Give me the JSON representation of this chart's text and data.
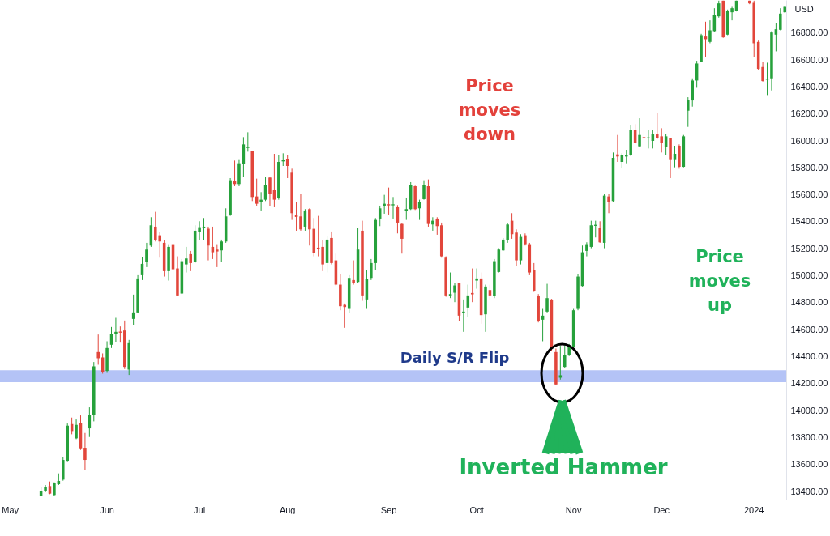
{
  "chart_data": {
    "type": "candlestick",
    "categories": [
      "May",
      null,
      null,
      null,
      null,
      null,
      null,
      null,
      null,
      null,
      null,
      null,
      null,
      null,
      null,
      null,
      null,
      null,
      null,
      null,
      null,
      null,
      "Jun",
      null,
      null,
      null,
      null,
      null,
      null,
      null,
      null,
      null,
      null,
      null,
      null,
      null,
      null,
      null,
      null,
      null,
      null,
      null,
      null,
      "Jul",
      null,
      null,
      null,
      null,
      null,
      null,
      null,
      null,
      null,
      null,
      null,
      null,
      null,
      null,
      null,
      null,
      null,
      null,
      null,
      "Aug",
      null,
      null,
      null,
      null,
      null,
      null,
      null,
      null,
      null,
      null,
      null,
      null,
      null,
      null,
      null,
      null,
      null,
      null,
      null,
      null,
      null,
      null,
      "Sep",
      null,
      null,
      null,
      null,
      null,
      null,
      null,
      null,
      null,
      null,
      null,
      null,
      null,
      null,
      null,
      null,
      null,
      null,
      null,
      "Oct",
      null,
      null,
      null,
      null,
      null,
      null,
      null,
      null,
      null,
      null,
      null,
      null,
      null,
      null,
      null,
      null,
      null,
      null,
      null,
      null,
      null,
      "Nov",
      null,
      null,
      null,
      null,
      null,
      null,
      null,
      null,
      null,
      null,
      null,
      null,
      null,
      null,
      null,
      null,
      null,
      null,
      null,
      "Dec",
      null,
      null,
      null,
      null,
      null,
      null,
      null,
      null,
      null,
      null,
      null,
      null,
      null,
      null,
      null,
      null,
      null,
      null,
      null,
      null,
      "2024",
      null,
      null,
      null,
      null,
      null,
      null,
      null
    ],
    "ohlc": [
      null,
      null,
      null,
      null,
      null,
      null,
      null,
      [
        13368,
        13434,
        13364,
        13404
      ],
      [
        13404,
        13448,
        13394,
        13434
      ],
      [
        13440,
        13474,
        13380,
        13384
      ],
      [
        13374,
        13468,
        13368,
        13460
      ],
      [
        13454,
        13534,
        13448,
        13478
      ],
      [
        13488,
        13654,
        13480,
        13634
      ],
      [
        13628,
        13904,
        13624,
        13888
      ],
      [
        13900,
        13948,
        13824,
        13848
      ],
      [
        13794,
        13934,
        13788,
        13894
      ],
      [
        13908,
        13964,
        13708,
        13720
      ],
      [
        13724,
        13834,
        13560,
        13634
      ],
      [
        13868,
        14024,
        13804,
        13968
      ],
      [
        13968,
        14360,
        13920,
        14328
      ],
      [
        14434,
        14564,
        14340,
        14388
      ],
      [
        14394,
        14424,
        14274,
        14288
      ],
      [
        14294,
        14514,
        14280,
        14464
      ],
      [
        14488,
        14620,
        14464,
        14568
      ],
      [
        14568,
        14688,
        14508,
        14584
      ],
      [
        14586,
        14624,
        14504,
        14578
      ],
      [
        14594,
        14668,
        14308,
        14324
      ],
      [
        14304,
        14524,
        14264,
        14500
      ],
      [
        14680,
        14860,
        14634,
        14728
      ],
      [
        14728,
        15004,
        14724,
        14980
      ],
      [
        15004,
        15140,
        14968,
        15088
      ],
      [
        15104,
        15244,
        15064,
        15194
      ],
      [
        15224,
        15434,
        15214,
        15374
      ],
      [
        15364,
        15474,
        15254,
        15264
      ],
      [
        15300,
        15324,
        15134,
        15254
      ],
      [
        15244,
        15264,
        14994,
        15034
      ],
      [
        15034,
        15234,
        14964,
        15214
      ],
      [
        15234,
        15240,
        14984,
        15048
      ],
      [
        15054,
        15144,
        14848,
        14854
      ],
      [
        14868,
        15124,
        14864,
        15108
      ],
      [
        15084,
        15214,
        15024,
        15128
      ],
      [
        15160,
        15184,
        15034,
        15094
      ],
      [
        15104,
        15374,
        15094,
        15334
      ],
      [
        15324,
        15404,
        15264,
        15360
      ],
      [
        15356,
        15428,
        15264,
        15364
      ],
      [
        15348,
        15364,
        15114,
        15224
      ],
      [
        15214,
        15364,
        15124,
        15174
      ],
      [
        15194,
        15234,
        15064,
        15180
      ],
      [
        15188,
        15268,
        15104,
        15254
      ],
      [
        15254,
        15500,
        15244,
        15440
      ],
      [
        15454,
        15724,
        15444,
        15708
      ],
      [
        15700,
        15854,
        15664,
        15680
      ],
      [
        15680,
        15864,
        15664,
        15834
      ],
      [
        15828,
        16028,
        15734,
        15974
      ],
      [
        15948,
        16064,
        15920,
        15958
      ],
      [
        15924,
        15928,
        15554,
        15584
      ],
      [
        15588,
        15720,
        15520,
        15534
      ],
      [
        15548,
        15620,
        15484,
        15564
      ],
      [
        15564,
        15734,
        15554,
        15674
      ],
      [
        15728,
        15734,
        15514,
        15608
      ],
      [
        15634,
        15904,
        15508,
        15564
      ],
      [
        15574,
        15894,
        15564,
        15844
      ],
      [
        15848,
        15908,
        15814,
        15856
      ],
      [
        15868,
        15894,
        15724,
        15814
      ],
      [
        15764,
        15794,
        15414,
        15464
      ],
      [
        15448,
        15548,
        15334,
        15436
      ],
      [
        15440,
        15604,
        15334,
        15344
      ],
      [
        15364,
        15494,
        15334,
        15484
      ],
      [
        15494,
        15500,
        15224,
        15344
      ],
      [
        15348,
        15428,
        15144,
        15168
      ],
      [
        15208,
        15444,
        15144,
        15198
      ],
      [
        15214,
        15264,
        15034,
        15084
      ],
      [
        15094,
        15294,
        15024,
        15268
      ],
      [
        15280,
        15328,
        15084,
        15094
      ],
      [
        15114,
        15164,
        14924,
        14934
      ],
      [
        14934,
        15014,
        14744,
        14774
      ],
      [
        14784,
        14794,
        14614,
        14768
      ],
      [
        14754,
        15004,
        14724,
        14984
      ],
      [
        14968,
        15114,
        14934,
        14948
      ],
      [
        14954,
        15354,
        14944,
        15194
      ],
      [
        15334,
        15408,
        14814,
        14854
      ],
      [
        14824,
        15044,
        14754,
        14974
      ],
      [
        14984,
        15124,
        14968,
        15094
      ],
      [
        15094,
        15428,
        15044,
        15414
      ],
      [
        15424,
        15520,
        15368,
        15500
      ],
      [
        15514,
        15600,
        15460,
        15534
      ],
      [
        15530,
        15654,
        15454,
        15522
      ],
      [
        15522,
        15584,
        15424,
        15530
      ],
      [
        15508,
        15524,
        15314,
        15394
      ],
      [
        15384,
        15388,
        15164,
        15274
      ],
      [
        15480,
        15580,
        15414,
        15494
      ],
      [
        15494,
        15694,
        15488,
        15674
      ],
      [
        15664,
        15668,
        15488,
        15494
      ],
      [
        15500,
        15564,
        15414,
        15544
      ],
      [
        15568,
        15708,
        15564,
        15674
      ],
      [
        15664,
        15714,
        15364,
        15384
      ],
      [
        15380,
        15434,
        15334,
        15408
      ],
      [
        15424,
        15434,
        15304,
        15368
      ],
      [
        15374,
        15394,
        15134,
        15144
      ],
      [
        15134,
        15144,
        14844,
        14854
      ],
      [
        14848,
        15024,
        14834,
        14864
      ],
      [
        14874,
        14944,
        14804,
        14928
      ],
      [
        14944,
        14948,
        14664,
        14704
      ],
      [
        14724,
        14824,
        14584,
        14734
      ],
      [
        14764,
        14934,
        14694,
        14854
      ],
      [
        14872,
        15054,
        14804,
        14862
      ],
      [
        14964,
        15054,
        14904,
        14980
      ],
      [
        14980,
        15024,
        14644,
        14708
      ],
      [
        14714,
        14934,
        14584,
        14920
      ],
      [
        14894,
        14934,
        14824,
        14854
      ],
      [
        14848,
        15124,
        14834,
        15108
      ],
      [
        15028,
        15204,
        15024,
        15194
      ],
      [
        15188,
        15280,
        15184,
        15268
      ],
      [
        15264,
        15388,
        15244,
        15380
      ],
      [
        15408,
        15464,
        15274,
        15308
      ],
      [
        15320,
        15344,
        15074,
        15114
      ],
      [
        15114,
        15308,
        15084,
        15288
      ],
      [
        15300,
        15314,
        15224,
        15234
      ],
      [
        15234,
        15244,
        15004,
        15024
      ],
      [
        15040,
        15094,
        14880,
        14888
      ],
      [
        14848,
        14864,
        14654,
        14664
      ],
      [
        14674,
        14754,
        14514,
        14704
      ],
      [
        14734,
        14940,
        14728,
        14834
      ],
      [
        14824,
        14828,
        14444,
        14464
      ],
      [
        14434,
        14460,
        14188,
        14194
      ],
      [
        14244,
        14480,
        14230,
        14262
      ],
      [
        14324,
        14484,
        14314,
        14414
      ],
      [
        14414,
        14494,
        14404,
        14474
      ],
      [
        14474,
        14754,
        14464,
        14744
      ],
      [
        14754,
        15014,
        14744,
        14994
      ],
      [
        14924,
        15224,
        14920,
        15174
      ],
      [
        15184,
        15248,
        15144,
        15234
      ],
      [
        15214,
        15408,
        15204,
        15374
      ],
      [
        15370,
        15408,
        15284,
        15378
      ],
      [
        15354,
        15404,
        15244,
        15248
      ],
      [
        15244,
        15604,
        15204,
        15594
      ],
      [
        15588,
        15604,
        15464,
        15544
      ],
      [
        15554,
        15914,
        15548,
        15874
      ],
      [
        15900,
        16044,
        15844,
        15884
      ],
      [
        15844,
        15908,
        15800,
        15894
      ],
      [
        15884,
        15934,
        15834,
        15892
      ],
      [
        15894,
        16114,
        15888,
        16084
      ],
      [
        16084,
        16124,
        15980,
        15988
      ],
      [
        15960,
        16168,
        15954,
        16044
      ],
      [
        16028,
        16084,
        16008,
        16020
      ],
      [
        16018,
        16084,
        15944,
        16026
      ],
      [
        16000,
        16084,
        15944,
        16048
      ],
      [
        16048,
        16208,
        16014,
        16024
      ],
      [
        16034,
        16094,
        15914,
        15984
      ],
      [
        15954,
        16054,
        15894,
        16034
      ],
      [
        16020,
        16024,
        15724,
        15864
      ],
      [
        15864,
        15964,
        15804,
        15904
      ],
      [
        15964,
        15974,
        15794,
        15808
      ],
      [
        15808,
        16044,
        15804,
        16034
      ],
      [
        16224,
        16324,
        16104,
        16304
      ],
      [
        16300,
        16464,
        16254,
        16448
      ],
      [
        16448,
        16594,
        16394,
        16574
      ],
      [
        16588,
        16794,
        16584,
        16784
      ],
      [
        16774,
        16884,
        16624,
        16754
      ],
      [
        16734,
        16894,
        16724,
        16820
      ],
      [
        16814,
        16984,
        16808,
        16934
      ],
      [
        16924,
        17040,
        16914,
        17020
      ],
      [
        17040,
        17040,
        16764,
        16768
      ],
      [
        16788,
        16974,
        16784,
        16964
      ],
      [
        16954,
        16994,
        16894,
        16984
      ],
      [
        16964,
        17040,
        16960,
        17040
      ],
      null,
      null,
      [
        17040,
        17040,
        17014,
        17020
      ],
      [
        17024,
        17040,
        16624,
        16724
      ],
      [
        16734,
        16744,
        16524,
        16534
      ],
      [
        16548,
        16584,
        16440,
        16444
      ],
      [
        16454,
        16580,
        16340,
        16462
      ],
      [
        16464,
        16814,
        16374,
        16804
      ],
      [
        16788,
        16874,
        16664,
        16828
      ],
      [
        16824,
        16984,
        16820,
        16944
      ],
      [
        16954,
        17000,
        16950,
        16994
      ]
    ],
    "colors": [
      null,
      null,
      null,
      null,
      null,
      null,
      null,
      "#26a13b",
      "#26a13b",
      "#e2463b",
      "#26a13b",
      "#26a13b",
      "#26a13b",
      "#26a13b",
      "#e2463b",
      "#26a13b",
      "#e2463b",
      "#e2463b",
      "#26a13b",
      "#26a13b",
      "#e2463b",
      "#e2463b",
      "#26a13b",
      "#26a13b",
      "#26a13b",
      "#e2463b",
      "#e2463b",
      "#26a13b",
      "#26a13b",
      "#26a13b",
      "#26a13b",
      "#26a13b",
      "#26a13b",
      "#e2463b",
      "#e2463b",
      "#e2463b",
      "#26a13b",
      "#e2463b",
      "#e2463b",
      "#26a13b",
      "#26a13b",
      "#e2463b",
      "#26a13b",
      "#26a13b",
      "#26a13b",
      "#e2463b",
      "#e2463b",
      "#e2463b",
      "#26a13b",
      "#26a13b",
      "#26a13b",
      "#e2463b",
      "#26a13b",
      "#26a13b",
      "#26a13b",
      "#e2463b",
      "#e2463b",
      "#26a13b",
      "#26a13b",
      "#e2463b",
      "#e2463b",
      "#26a13b",
      "#26a13b",
      "#e2463b",
      "#e2463b",
      "#e2463b",
      "#e2463b",
      "#26a13b",
      "#e2463b",
      "#e2463b",
      "#e2463b",
      "#e2463b",
      "#26a13b",
      "#e2463b",
      "#e2463b",
      "#e2463b",
      "#e2463b",
      "#26a13b",
      "#e2463b",
      "#26a13b",
      "#e2463b",
      "#26a13b",
      "#26a13b",
      "#26a13b",
      "#26a13b",
      "#26a13b",
      "#e2463b",
      "#26a13b",
      "#e2463b",
      "#e2463b",
      "#26a13b",
      "#26a13b",
      "#e2463b",
      "#26a13b",
      "#26a13b",
      "#e2463b",
      "#26a13b",
      "#e2463b",
      "#e2463b",
      "#e2463b",
      "#26a13b",
      "#26a13b",
      "#e2463b",
      "#26a13b",
      "#26a13b",
      "#e2463b",
      "#26a13b",
      "#e2463b",
      "#26a13b",
      "#e2463b",
      "#26a13b",
      "#26a13b",
      "#26a13b",
      "#26a13b",
      "#e2463b",
      "#e2463b",
      "#26a13b",
      "#e2463b",
      "#e2463b",
      "#e2463b",
      "#e2463b",
      "#26a13b",
      "#26a13b",
      "#e2463b",
      "#e2463b",
      "#26a13b",
      "#26a13b",
      "#26a13b",
      "#26a13b",
      "#26a13b",
      "#26a13b",
      "#26a13b",
      "#26a13b",
      "#26a13b",
      "#e2463b",
      "#26a13b",
      "#e2463b",
      "#26a13b",
      "#e2463b",
      "#26a13b",
      "#26a13b",
      "#26a13b",
      "#e2463b",
      "#26a13b",
      "#e2463b",
      "#26a13b",
      "#26a13b",
      "#e2463b",
      "#e2463b",
      "#26a13b",
      "#e2463b",
      "#26a13b",
      "#e2463b",
      "#26a13b",
      "#26a13b",
      "#26a13b",
      "#26a13b",
      "#26a13b",
      "#e2463b",
      "#26a13b",
      "#26a13b",
      "#26a13b",
      "#e2463b",
      "#26a13b",
      "#26a13b",
      "#26a13b",
      null,
      null,
      "#e2463b",
      "#e2463b",
      "#e2463b",
      "#e2463b",
      "#26a13b",
      "#26a13b",
      "#26a13b",
      "#26a13b",
      "#26a13b"
    ],
    "ylim": [
      13340,
      17045
    ],
    "yticks": [
      {
        "value": 13400,
        "label": "13400.00"
      },
      {
        "value": 13600,
        "label": "13600.00"
      },
      {
        "value": 13800,
        "label": "13800.00"
      },
      {
        "value": 14000,
        "label": "14000.00"
      },
      {
        "value": 14200,
        "label": "14200.00"
      },
      {
        "value": 14400,
        "label": "14400.00"
      },
      {
        "value": 14600,
        "label": "14600.00"
      },
      {
        "value": 14800,
        "label": "14800.00"
      },
      {
        "value": 15000,
        "label": "15000.00"
      },
      {
        "value": 15200,
        "label": "15200.00"
      },
      {
        "value": 15400,
        "label": "15400.00"
      },
      {
        "value": 15600,
        "label": "15600.00"
      },
      {
        "value": 15800,
        "label": "15800.00"
      },
      {
        "value": 16000,
        "label": "16000.00"
      },
      {
        "value": 16200,
        "label": "16200.00"
      },
      {
        "value": 16400,
        "label": "16400.00"
      },
      {
        "value": 16600,
        "label": "16600.00"
      },
      {
        "value": 16800,
        "label": "16800.00"
      }
    ],
    "ylabel": "USD",
    "grid": false,
    "bands": [
      {
        "axis": "y",
        "from": 14210,
        "to": 14300,
        "label": "Daily S/R Flip",
        "color": "#b4c3f6"
      }
    ],
    "annotations": [
      "Price\nmoves\ndown",
      "Price\nmoves\nup",
      "Inverted Hammer"
    ]
  }
}
